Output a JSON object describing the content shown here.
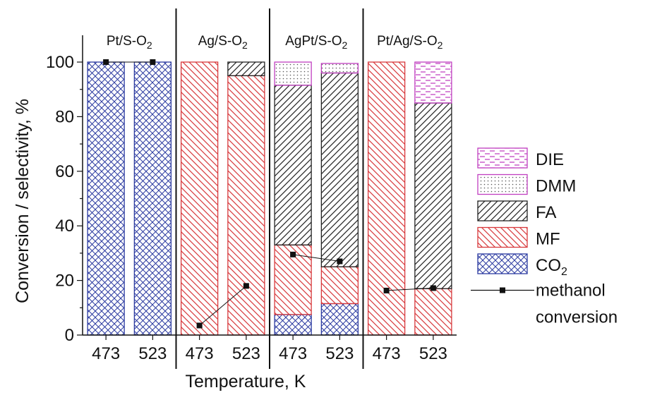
{
  "chart_data": {
    "type": "bar",
    "stacked": true,
    "title": "",
    "xlabel": "Temperature, K",
    "ylabel": "Conversion / selectivity, %",
    "ylim": [
      0,
      100
    ],
    "yticks": [
      0,
      20,
      40,
      60,
      80,
      100
    ],
    "groups": [
      {
        "name": "Pt/S-O",
        "sub": "2"
      },
      {
        "name": "Ag/S-O",
        "sub": "2"
      },
      {
        "name": "AgPt/S-O",
        "sub": "2"
      },
      {
        "name": "Pt/Ag/S-O",
        "sub": "2"
      }
    ],
    "categories": [
      "473",
      "523",
      "473",
      "523",
      "473",
      "523",
      "473",
      "523"
    ],
    "series": [
      {
        "name": "CO",
        "sub": "2",
        "pattern": "crosshatch",
        "color": "#2b3aa0",
        "values": [
          100,
          100,
          0,
          0,
          7.5,
          11.5,
          0,
          0
        ]
      },
      {
        "name": "MF",
        "pattern": "backslash",
        "color": "#d8393c",
        "values": [
          0,
          0,
          100,
          95,
          25.5,
          13.5,
          100,
          17
        ]
      },
      {
        "name": "FA",
        "pattern": "slash",
        "color": "#222222",
        "values": [
          0,
          0,
          0,
          5,
          58.5,
          71,
          0,
          68
        ]
      },
      {
        "name": "DMM",
        "pattern": "dots",
        "color": "#c03fc0",
        "values": [
          0,
          0,
          0,
          0,
          8.5,
          3.5,
          0,
          0
        ]
      },
      {
        "name": "DIE",
        "pattern": "dashes",
        "color": "#c03fc0",
        "values": [
          0,
          0,
          0,
          0,
          0,
          0,
          0,
          15
        ]
      }
    ],
    "line_series": {
      "name": "methanol conversion",
      "name_lines": [
        "methanol",
        "conversion"
      ],
      "values": [
        100,
        100,
        3.5,
        18,
        29.5,
        27,
        16.3,
        17.2
      ]
    },
    "legend_position": "right",
    "colors": {
      "axis": "#111111",
      "co2": "#2b3aa0",
      "mf": "#d8393c",
      "fa": "#222222",
      "pink": "#c03fc0"
    }
  }
}
